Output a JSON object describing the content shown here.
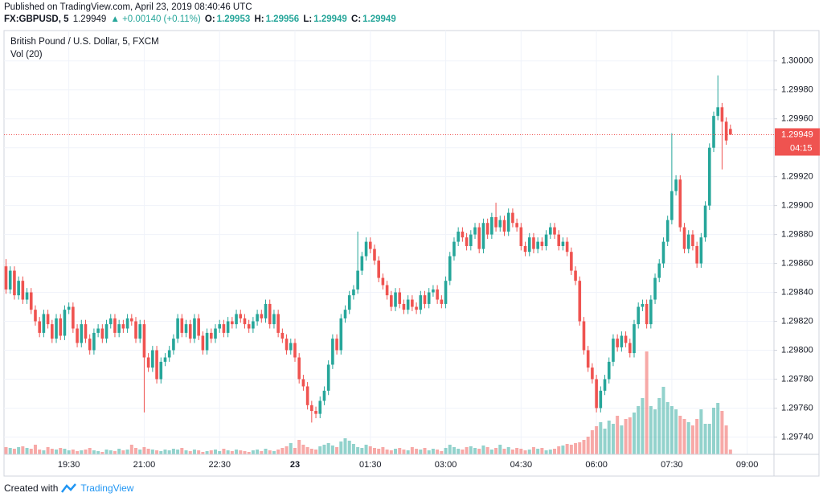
{
  "header": {
    "published": "Published on TradingView.com, April 23, 2019 08:40:46 UTC",
    "symbol": "FX:GBPUSD, 5",
    "price": "1.29949",
    "change": "▲ +0.00140 (+0.11%)",
    "o_label": "O:",
    "o": "1.29953",
    "h_label": "H:",
    "h": "1.29956",
    "l_label": "L:",
    "l": "1.29949",
    "c_label": "C:",
    "c": "1.29949"
  },
  "footer": {
    "created": "Created with",
    "brand": "TradingView"
  },
  "chart_data": {
    "type": "candlestick",
    "title": "British Pound / U.S. Dollar, 5, FXCM",
    "volume_label": "Vol (20)",
    "up_color": "#26a69a",
    "down_color": "#ef5350",
    "grid": true,
    "last_price": {
      "value": 1.29949,
      "label": "1.29949"
    },
    "countdown": "04:15",
    "ylim": [
      1.29728,
      1.30021
    ],
    "yticks": [
      {
        "value": 1.2974,
        "label": "1.29740"
      },
      {
        "value": 1.2976,
        "label": "1.29760"
      },
      {
        "value": 1.2978,
        "label": "1.29780"
      },
      {
        "value": 1.298,
        "label": "1.29800"
      },
      {
        "value": 1.2982,
        "label": "1.29820"
      },
      {
        "value": 1.2984,
        "label": "1.29840"
      },
      {
        "value": 1.2986,
        "label": "1.29860"
      },
      {
        "value": 1.2988,
        "label": "1.29880"
      },
      {
        "value": 1.299,
        "label": "1.29900"
      },
      {
        "value": 1.2992,
        "label": "1.29920"
      },
      {
        "value": 1.2994,
        "label": "1.29940"
      },
      {
        "value": 1.2996,
        "label": "1.29960"
      },
      {
        "value": 1.2998,
        "label": "1.29980"
      },
      {
        "value": 1.3,
        "label": "1.30000"
      }
    ],
    "categories": [
      null,
      null,
      null,
      null,
      null,
      null,
      null,
      null,
      null,
      null,
      null,
      null,
      null,
      null,
      null,
      "19:30",
      null,
      null,
      null,
      null,
      null,
      null,
      null,
      null,
      null,
      null,
      null,
      null,
      null,
      null,
      null,
      null,
      null,
      "21:00",
      null,
      null,
      null,
      null,
      null,
      null,
      null,
      null,
      null,
      null,
      null,
      null,
      null,
      null,
      null,
      null,
      null,
      "22:30",
      null,
      null,
      null,
      null,
      null,
      null,
      null,
      null,
      null,
      null,
      null,
      null,
      null,
      null,
      null,
      null,
      null,
      "23",
      null,
      null,
      null,
      null,
      null,
      null,
      null,
      null,
      null,
      null,
      null,
      null,
      null,
      null,
      null,
      null,
      null,
      "01:30",
      null,
      null,
      null,
      null,
      null,
      null,
      null,
      null,
      null,
      null,
      null,
      null,
      null,
      null,
      null,
      null,
      null,
      "03:00",
      null,
      null,
      null,
      null,
      null,
      null,
      null,
      null,
      null,
      null,
      null,
      null,
      null,
      null,
      null,
      null,
      null,
      "04:30",
      null,
      null,
      null,
      null,
      null,
      null,
      null,
      null,
      null,
      null,
      null,
      null,
      null,
      null,
      null,
      null,
      null,
      "06:00",
      null,
      null,
      null,
      null,
      null,
      null,
      null,
      null,
      null,
      null,
      null,
      null,
      null,
      null,
      null,
      null,
      null,
      "07:30",
      null,
      null,
      null,
      null,
      null,
      null,
      null,
      null,
      null,
      null,
      null,
      null,
      null,
      null,
      null,
      null,
      null,
      "09:00"
    ],
    "open": [
      1.29858,
      1.29842,
      1.29855,
      1.29838,
      1.29848,
      1.29835,
      1.2984,
      1.29828,
      1.2982,
      1.29812,
      1.29825,
      1.29818,
      1.29808,
      1.29822,
      1.2981,
      1.29828,
      1.2983,
      1.29815,
      1.29805,
      1.29818,
      1.29808,
      1.298,
      1.29812,
      1.29815,
      1.29808,
      1.29818,
      1.29822,
      1.29812,
      1.29818,
      1.29815,
      1.29822,
      1.2982,
      1.29808,
      1.29818,
      1.29795,
      1.29788,
      1.298,
      1.2978,
      1.29792,
      1.29795,
      1.298,
      1.29808,
      1.29822,
      1.29812,
      1.29818,
      1.29808,
      1.29822,
      1.2981,
      1.298,
      1.29812,
      1.29808,
      1.29815,
      1.29818,
      1.29812,
      1.2982,
      1.29818,
      1.29825,
      1.29822,
      1.29818,
      1.29815,
      1.2982,
      1.29825,
      1.29822,
      1.29832,
      1.29818,
      1.29825,
      1.29812,
      1.29808,
      1.298,
      1.29805,
      1.29795,
      1.2978,
      1.29775,
      1.29762,
      1.29758,
      1.29756,
      1.29765,
      1.29772,
      1.2979,
      1.29808,
      1.298,
      1.29822,
      1.29828,
      1.29838,
      1.29842,
      1.29855,
      1.29865,
      1.29875,
      1.2987,
      1.29862,
      1.2985,
      1.29845,
      1.29838,
      1.2983,
      1.2984,
      1.29832,
      1.29828,
      1.29835,
      1.2983,
      1.29828,
      1.29838,
      1.29832,
      1.2984,
      1.29842,
      1.29835,
      1.29832,
      1.29848,
      1.29865,
      1.29875,
      1.29882,
      1.29878,
      1.29872,
      1.2988,
      1.29885,
      1.2987,
      1.29888,
      1.2988,
      1.29892,
      1.29885,
      1.2989,
      1.29882,
      1.29895,
      1.29888,
      1.29885,
      1.29872,
      1.29868,
      1.29878,
      1.2987,
      1.29875,
      1.29872,
      1.2988,
      1.29885,
      1.2988,
      1.29872,
      1.29875,
      1.29868,
      1.29855,
      1.29848,
      1.2982,
      1.298,
      1.29788,
      1.2978,
      1.2976,
      1.29772,
      1.2978,
      1.29792,
      1.29808,
      1.29802,
      1.2981,
      1.29805,
      1.29798,
      1.29818,
      1.2983,
      1.29832,
      1.29818,
      1.29835,
      1.2985,
      1.2986,
      1.29875,
      1.2989,
      1.2991,
      1.29918,
      1.29885,
      1.2987,
      1.2988,
      1.29872,
      1.2986,
      1.29878,
      1.299,
      1.2994,
      1.29962,
      1.29968,
      1.29958,
      1.29953,
      null,
      null,
      null,
      null
    ],
    "high": [
      1.29863,
      1.29858,
      1.29858,
      1.29851,
      1.29851,
      1.29843,
      1.29843,
      1.29831,
      1.29823,
      1.29828,
      1.29828,
      1.29821,
      1.29825,
      1.29825,
      1.29831,
      1.29833,
      1.29833,
      1.29818,
      1.29821,
      1.29821,
      1.29811,
      1.29815,
      1.29818,
      1.29818,
      1.29821,
      1.29825,
      1.29825,
      1.29821,
      1.29821,
      1.29825,
      1.29825,
      1.29823,
      1.29821,
      1.29821,
      1.29798,
      1.29803,
      1.29803,
      1.29795,
      1.29798,
      1.29803,
      1.29811,
      1.29825,
      1.29825,
      1.29821,
      1.29821,
      1.29825,
      1.29825,
      1.29813,
      1.29815,
      1.29815,
      1.29818,
      1.29821,
      1.29821,
      1.29823,
      1.29823,
      1.29828,
      1.29828,
      1.29825,
      1.29821,
      1.29823,
      1.29828,
      1.29828,
      1.29835,
      1.29835,
      1.29828,
      1.29828,
      1.29815,
      1.29811,
      1.29808,
      1.29808,
      1.29798,
      1.29783,
      1.29778,
      1.29765,
      1.29761,
      1.29768,
      1.29775,
      1.29793,
      1.29811,
      1.29811,
      1.29825,
      1.29831,
      1.29841,
      1.29845,
      1.29882,
      1.29868,
      1.29878,
      1.29878,
      1.29873,
      1.29865,
      1.29853,
      1.29848,
      1.29841,
      1.29843,
      1.29843,
      1.29835,
      1.29838,
      1.29838,
      1.29833,
      1.29841,
      1.29841,
      1.29843,
      1.29845,
      1.29845,
      1.29838,
      1.29851,
      1.29868,
      1.29878,
      1.29885,
      1.29885,
      1.29881,
      1.29883,
      1.29888,
      1.29888,
      1.29891,
      1.29891,
      1.29895,
      1.29902,
      1.29893,
      1.29893,
      1.29898,
      1.29898,
      1.29891,
      1.29888,
      1.29875,
      1.29881,
      1.29881,
      1.29878,
      1.29878,
      1.29883,
      1.29888,
      1.29888,
      1.29883,
      1.29878,
      1.29878,
      1.29871,
      1.29858,
      1.29851,
      1.29823,
      1.29803,
      1.29791,
      1.29783,
      1.29775,
      1.29783,
      1.29795,
      1.29811,
      1.29811,
      1.29813,
      1.29813,
      1.29808,
      1.29821,
      1.29833,
      1.29835,
      1.29835,
      1.29838,
      1.29853,
      1.29863,
      1.29878,
      1.29893,
      1.2995,
      1.29921,
      1.29921,
      1.29888,
      1.29883,
      1.29883,
      1.29875,
      1.29881,
      1.29903,
      1.29943,
      1.29965,
      1.2999,
      1.29971,
      1.29961,
      1.29956,
      null,
      null,
      null,
      null
    ],
    "low": [
      1.29839,
      1.29839,
      1.29835,
      1.29835,
      1.29832,
      1.29832,
      1.29825,
      1.29817,
      1.29809,
      1.29809,
      1.29815,
      1.29805,
      1.29805,
      1.29807,
      1.29807,
      1.29825,
      1.29812,
      1.29802,
      1.29802,
      1.29805,
      1.29797,
      1.29797,
      1.29809,
      1.29805,
      1.29805,
      1.29815,
      1.29809,
      1.29809,
      1.29812,
      1.29812,
      1.29817,
      1.29805,
      1.29805,
      1.29757,
      1.29785,
      1.29785,
      1.29777,
      1.29777,
      1.29789,
      1.29792,
      1.29797,
      1.29805,
      1.29809,
      1.29809,
      1.29805,
      1.29805,
      1.29807,
      1.29797,
      1.29797,
      1.29805,
      1.29805,
      1.29812,
      1.29809,
      1.29809,
      1.29815,
      1.29815,
      1.29819,
      1.29815,
      1.29812,
      1.29812,
      1.29817,
      1.29819,
      1.29819,
      1.29815,
      1.29815,
      1.29809,
      1.29805,
      1.29797,
      1.29797,
      1.29792,
      1.29777,
      1.29772,
      1.29759,
      1.2975,
      1.29753,
      1.29753,
      1.29762,
      1.29769,
      1.29787,
      1.29797,
      1.29797,
      1.29819,
      1.29825,
      1.29835,
      1.29839,
      1.29852,
      1.29862,
      1.29867,
      1.29859,
      1.29847,
      1.29842,
      1.29835,
      1.29827,
      1.29827,
      1.29829,
      1.29825,
      1.29825,
      1.29827,
      1.29825,
      1.29825,
      1.29829,
      1.29829,
      1.29837,
      1.29832,
      1.29829,
      1.29829,
      1.29845,
      1.29862,
      1.29872,
      1.29875,
      1.29869,
      1.29869,
      1.29877,
      1.29867,
      1.29867,
      1.29877,
      1.29877,
      1.29882,
      1.29882,
      1.29879,
      1.29879,
      1.29885,
      1.29882,
      1.29869,
      1.29865,
      1.29865,
      1.29867,
      1.29867,
      1.29869,
      1.29869,
      1.29877,
      1.29877,
      1.29869,
      1.29869,
      1.29865,
      1.29852,
      1.29845,
      1.29817,
      1.29797,
      1.29785,
      1.29777,
      1.29757,
      1.29757,
      1.29769,
      1.29777,
      1.29789,
      1.29799,
      1.29799,
      1.29802,
      1.29795,
      1.29795,
      1.29815,
      1.29827,
      1.29815,
      1.29815,
      1.29832,
      1.29847,
      1.29857,
      1.29872,
      1.29887,
      1.29907,
      1.29882,
      1.29867,
      1.29867,
      1.29869,
      1.29857,
      1.29857,
      1.29875,
      1.29897,
      1.29937,
      1.29959,
      1.29925,
      1.29942,
      1.29949,
      null,
      null,
      null,
      null
    ],
    "close": [
      1.29842,
      1.29855,
      1.29838,
      1.29848,
      1.29835,
      1.2984,
      1.29828,
      1.2982,
      1.29812,
      1.29825,
      1.29818,
      1.29808,
      1.29822,
      1.2981,
      1.29828,
      1.2983,
      1.29815,
      1.29805,
      1.29818,
      1.29808,
      1.298,
      1.29812,
      1.29815,
      1.29808,
      1.29818,
      1.29822,
      1.29812,
      1.29818,
      1.29815,
      1.29822,
      1.2982,
      1.29808,
      1.29818,
      1.29795,
      1.29788,
      1.298,
      1.2978,
      1.29792,
      1.29795,
      1.298,
      1.29808,
      1.29822,
      1.29812,
      1.29818,
      1.29808,
      1.29822,
      1.2981,
      1.298,
      1.29812,
      1.29808,
      1.29815,
      1.29818,
      1.29812,
      1.2982,
      1.29818,
      1.29825,
      1.29822,
      1.29818,
      1.29815,
      1.2982,
      1.29825,
      1.29822,
      1.29832,
      1.29818,
      1.29825,
      1.29812,
      1.29808,
      1.298,
      1.29805,
      1.29795,
      1.2978,
      1.29775,
      1.29762,
      1.29758,
      1.29756,
      1.29765,
      1.29772,
      1.2979,
      1.29808,
      1.298,
      1.29822,
      1.29828,
      1.29838,
      1.29842,
      1.29855,
      1.29865,
      1.29875,
      1.2987,
      1.29862,
      1.2985,
      1.29845,
      1.29838,
      1.2983,
      1.2984,
      1.29832,
      1.29828,
      1.29835,
      1.2983,
      1.29828,
      1.29838,
      1.29832,
      1.2984,
      1.29842,
      1.29835,
      1.29832,
      1.29848,
      1.29865,
      1.29875,
      1.29882,
      1.29878,
      1.29872,
      1.2988,
      1.29885,
      1.2987,
      1.29888,
      1.2988,
      1.29892,
      1.29885,
      1.2989,
      1.29882,
      1.29895,
      1.29888,
      1.29885,
      1.29872,
      1.29868,
      1.29878,
      1.2987,
      1.29875,
      1.29872,
      1.2988,
      1.29885,
      1.2988,
      1.29872,
      1.29875,
      1.29868,
      1.29855,
      1.29848,
      1.2982,
      1.298,
      1.29788,
      1.2978,
      1.2976,
      1.29772,
      1.2978,
      1.29792,
      1.29808,
      1.29802,
      1.2981,
      1.29805,
      1.29798,
      1.29818,
      1.2983,
      1.29832,
      1.29818,
      1.29835,
      1.2985,
      1.2986,
      1.29875,
      1.2989,
      1.2991,
      1.29918,
      1.29885,
      1.2987,
      1.2988,
      1.29872,
      1.2986,
      1.29878,
      1.299,
      1.2994,
      1.29962,
      1.29968,
      1.29958,
      1.29945,
      1.29949,
      null,
      null,
      null,
      null
    ],
    "volume": [
      9,
      8,
      7,
      9,
      10,
      8,
      7,
      12,
      6,
      5,
      9,
      7,
      6,
      8,
      7,
      5,
      6,
      4,
      5,
      6,
      8,
      5,
      4,
      3,
      6,
      5,
      4,
      7,
      5,
      6,
      12,
      8,
      6,
      9,
      7,
      6,
      5,
      4,
      6,
      5,
      7,
      6,
      8,
      5,
      4,
      6,
      5,
      3,
      4,
      5,
      6,
      4,
      7,
      5,
      4,
      6,
      5,
      4,
      3,
      5,
      6,
      4,
      7,
      5,
      4,
      6,
      8,
      10,
      14,
      8,
      18,
      12,
      9,
      7,
      6,
      10,
      12,
      14,
      11,
      9,
      16,
      20,
      17,
      13,
      9,
      8,
      12,
      10,
      8,
      7,
      9,
      6,
      5,
      7,
      8,
      6,
      5,
      9,
      7,
      6,
      8,
      5,
      7,
      6,
      4,
      8,
      12,
      9,
      7,
      6,
      9,
      10,
      8,
      7,
      11,
      9,
      6,
      8,
      12,
      7,
      9,
      6,
      8,
      7,
      5,
      6,
      9,
      7,
      8,
      5,
      6,
      7,
      10,
      11,
      13,
      12,
      14,
      15,
      18,
      22,
      30,
      35,
      40,
      32,
      42,
      38,
      48,
      36,
      44,
      46,
      52,
      60,
      70,
      128,
      60,
      56,
      70,
      84,
      65,
      60,
      56,
      48,
      44,
      40,
      36,
      44,
      56,
      38,
      38,
      58,
      64,
      54,
      36,
      6,
      null,
      null,
      null,
      null
    ]
  }
}
